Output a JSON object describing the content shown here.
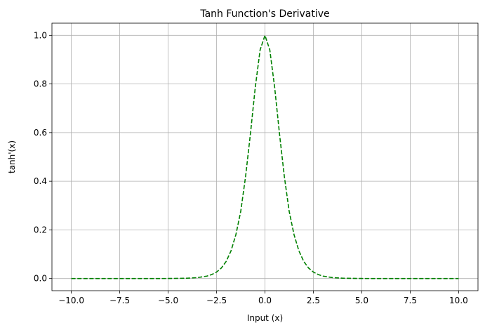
{
  "chart_data": {
    "type": "line",
    "title": "Tanh Function's Derivative",
    "xlabel": "Input (x)",
    "ylabel": "tanh'(x)",
    "xlim": [
      -11,
      11
    ],
    "ylim": [
      -0.05,
      1.05
    ],
    "xticks": [
      -10.0,
      -7.5,
      -5.0,
      -2.5,
      0.0,
      2.5,
      5.0,
      7.5,
      10.0
    ],
    "xtick_labels": [
      "−10.0",
      "−7.5",
      "−5.0",
      "−2.5",
      "0.0",
      "2.5",
      "5.0",
      "7.5",
      "10.0"
    ],
    "yticks": [
      0.0,
      0.2,
      0.4,
      0.6,
      0.8,
      1.0
    ],
    "ytick_labels": [
      "0.0",
      "0.2",
      "0.4",
      "0.6",
      "0.8",
      "1.0"
    ],
    "grid": true,
    "series": [
      {
        "color": "#008000",
        "line_style": "dashed",
        "x": [
          -10,
          -8,
          -6,
          -5,
          -4,
          -3.5,
          -3,
          -2.75,
          -2.5,
          -2.25,
          -2,
          -1.75,
          -1.5,
          -1.25,
          -1,
          -0.75,
          -0.5,
          -0.25,
          0,
          0.25,
          0.5,
          0.75,
          1,
          1.25,
          1.5,
          1.75,
          2,
          2.25,
          2.5,
          2.75,
          3,
          3.5,
          4,
          5,
          6,
          8,
          10
        ],
        "y": [
          0.0,
          0.0,
          0.0,
          0.0002,
          0.0013,
          0.0036,
          0.0099,
          0.0163,
          0.0266,
          0.0434,
          0.0707,
          0.1143,
          0.1807,
          0.2766,
          0.42,
          0.5954,
          0.7864,
          0.9401,
          1.0,
          0.9401,
          0.7864,
          0.5954,
          0.42,
          0.2766,
          0.1807,
          0.1143,
          0.0707,
          0.0434,
          0.0266,
          0.0163,
          0.0099,
          0.0036,
          0.0013,
          0.0002,
          0.0,
          0.0,
          0.0
        ]
      }
    ]
  }
}
